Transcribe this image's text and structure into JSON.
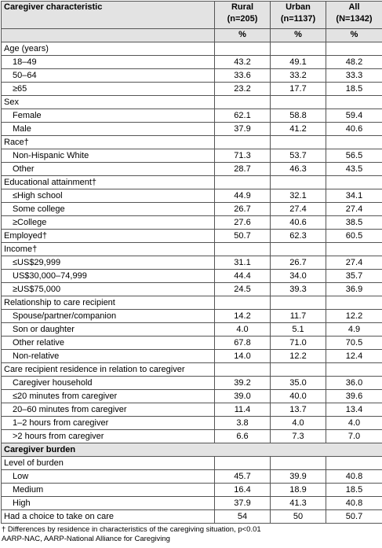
{
  "table": {
    "header": {
      "label": "Caregiver characteristic",
      "columns": [
        {
          "name": "Rural",
          "n": "(n=205)",
          "unit": "%"
        },
        {
          "name": "Urban",
          "n": "(n=1137)",
          "unit": "%"
        },
        {
          "name": "All",
          "n": "(N=1342)",
          "unit": "%"
        }
      ]
    },
    "sections": [
      {
        "rows": [
          {
            "label": "Age (years)",
            "rows": [
              {
                "label": "18–49",
                "values": [
                  "43.2",
                  "49.1",
                  "48.2"
                ]
              },
              {
                "label": "50–64",
                "values": [
                  "33.6",
                  "33.2",
                  "33.3"
                ]
              },
              {
                "label": "≥65",
                "values": [
                  "23.2",
                  "17.7",
                  "18.5"
                ]
              }
            ]
          },
          {
            "label": "Sex",
            "rows": [
              {
                "label": "Female",
                "values": [
                  "62.1",
                  "58.8",
                  "59.4"
                ]
              },
              {
                "label": "Male",
                "values": [
                  "37.9",
                  "41.2",
                  "40.6"
                ]
              }
            ]
          },
          {
            "label": "Race†",
            "rows": [
              {
                "label": "Non-Hispanic White",
                "values": [
                  "71.3",
                  "53.7",
                  "56.5"
                ]
              },
              {
                "label": "Other",
                "values": [
                  "28.7",
                  "46.3",
                  "43.5"
                ]
              }
            ]
          },
          {
            "label": "Educational attainment†",
            "rows": [
              {
                "label": "≤High school",
                "values": [
                  "44.9",
                  "32.1",
                  "34.1"
                ]
              },
              {
                "label": "Some college",
                "values": [
                  "26.7",
                  "27.4",
                  "27.4"
                ]
              },
              {
                "label": "≥College",
                "values": [
                  "27.6",
                  "40.6",
                  "38.5"
                ]
              }
            ]
          },
          {
            "label": "Employed†",
            "values": [
              "50.7",
              "62.3",
              "60.5"
            ]
          },
          {
            "label": "Income†",
            "rows": [
              {
                "label": "≤US$29,999",
                "values": [
                  "31.1",
                  "26.7",
                  "27.4"
                ]
              },
              {
                "label": "US$30,000–74,999",
                "values": [
                  "44.4",
                  "34.0",
                  "35.7"
                ]
              },
              {
                "label": "≥US$75,000",
                "values": [
                  "24.5",
                  "39.3",
                  "36.9"
                ]
              }
            ]
          },
          {
            "label": "Relationship to care recipient",
            "rows": [
              {
                "label": "Spouse/partner/companion",
                "values": [
                  "14.2",
                  "11.7",
                  "12.2"
                ]
              },
              {
                "label": "Son or daughter",
                "values": [
                  "4.0",
                  "5.1",
                  "4.9"
                ]
              },
              {
                "label": "Other relative",
                "values": [
                  "67.8",
                  "71.0",
                  "70.5"
                ]
              },
              {
                "label": "Non-relative",
                "values": [
                  "14.0",
                  "12.2",
                  "12.4"
                ]
              }
            ]
          },
          {
            "label": "Care recipient residence in relation to caregiver",
            "rows": [
              {
                "label": "Caregiver household",
                "values": [
                  "39.2",
                  "35.0",
                  "36.0"
                ]
              },
              {
                "label": "≤20 minutes from caregiver",
                "values": [
                  "39.0",
                  "40.0",
                  "39.6"
                ]
              },
              {
                "label": "20–60 minutes from caregiver",
                "values": [
                  "11.4",
                  "13.7",
                  "13.4"
                ]
              },
              {
                "label": "1–2 hours from caregiver",
                "values": [
                  "3.8",
                  "4.0",
                  "4.0"
                ]
              },
              {
                "label": ">2 hours from caregiver",
                "values": [
                  "6.6",
                  "7.3",
                  "7.0"
                ]
              }
            ]
          }
        ]
      },
      {
        "heading": "Caregiver burden",
        "rows": [
          {
            "label": "Level of burden",
            "rows": [
              {
                "label": "Low",
                "values": [
                  "45.7",
                  "39.9",
                  "40.8"
                ]
              },
              {
                "label": "Medium",
                "values": [
                  "16.4",
                  "18.9",
                  "18.5"
                ]
              },
              {
                "label": "High",
                "values": [
                  "37.9",
                  "41.3",
                  "40.8"
                ]
              }
            ]
          },
          {
            "label": "Had a choice to take on care",
            "values": [
              "54",
              "50",
              "50.7"
            ]
          }
        ]
      }
    ]
  },
  "footnotes": [
    "† Differences by residence in characteristics of the caregiving situation, p<0.01",
    "AARP-NAC, AARP-National Alliance for Caregiving"
  ]
}
